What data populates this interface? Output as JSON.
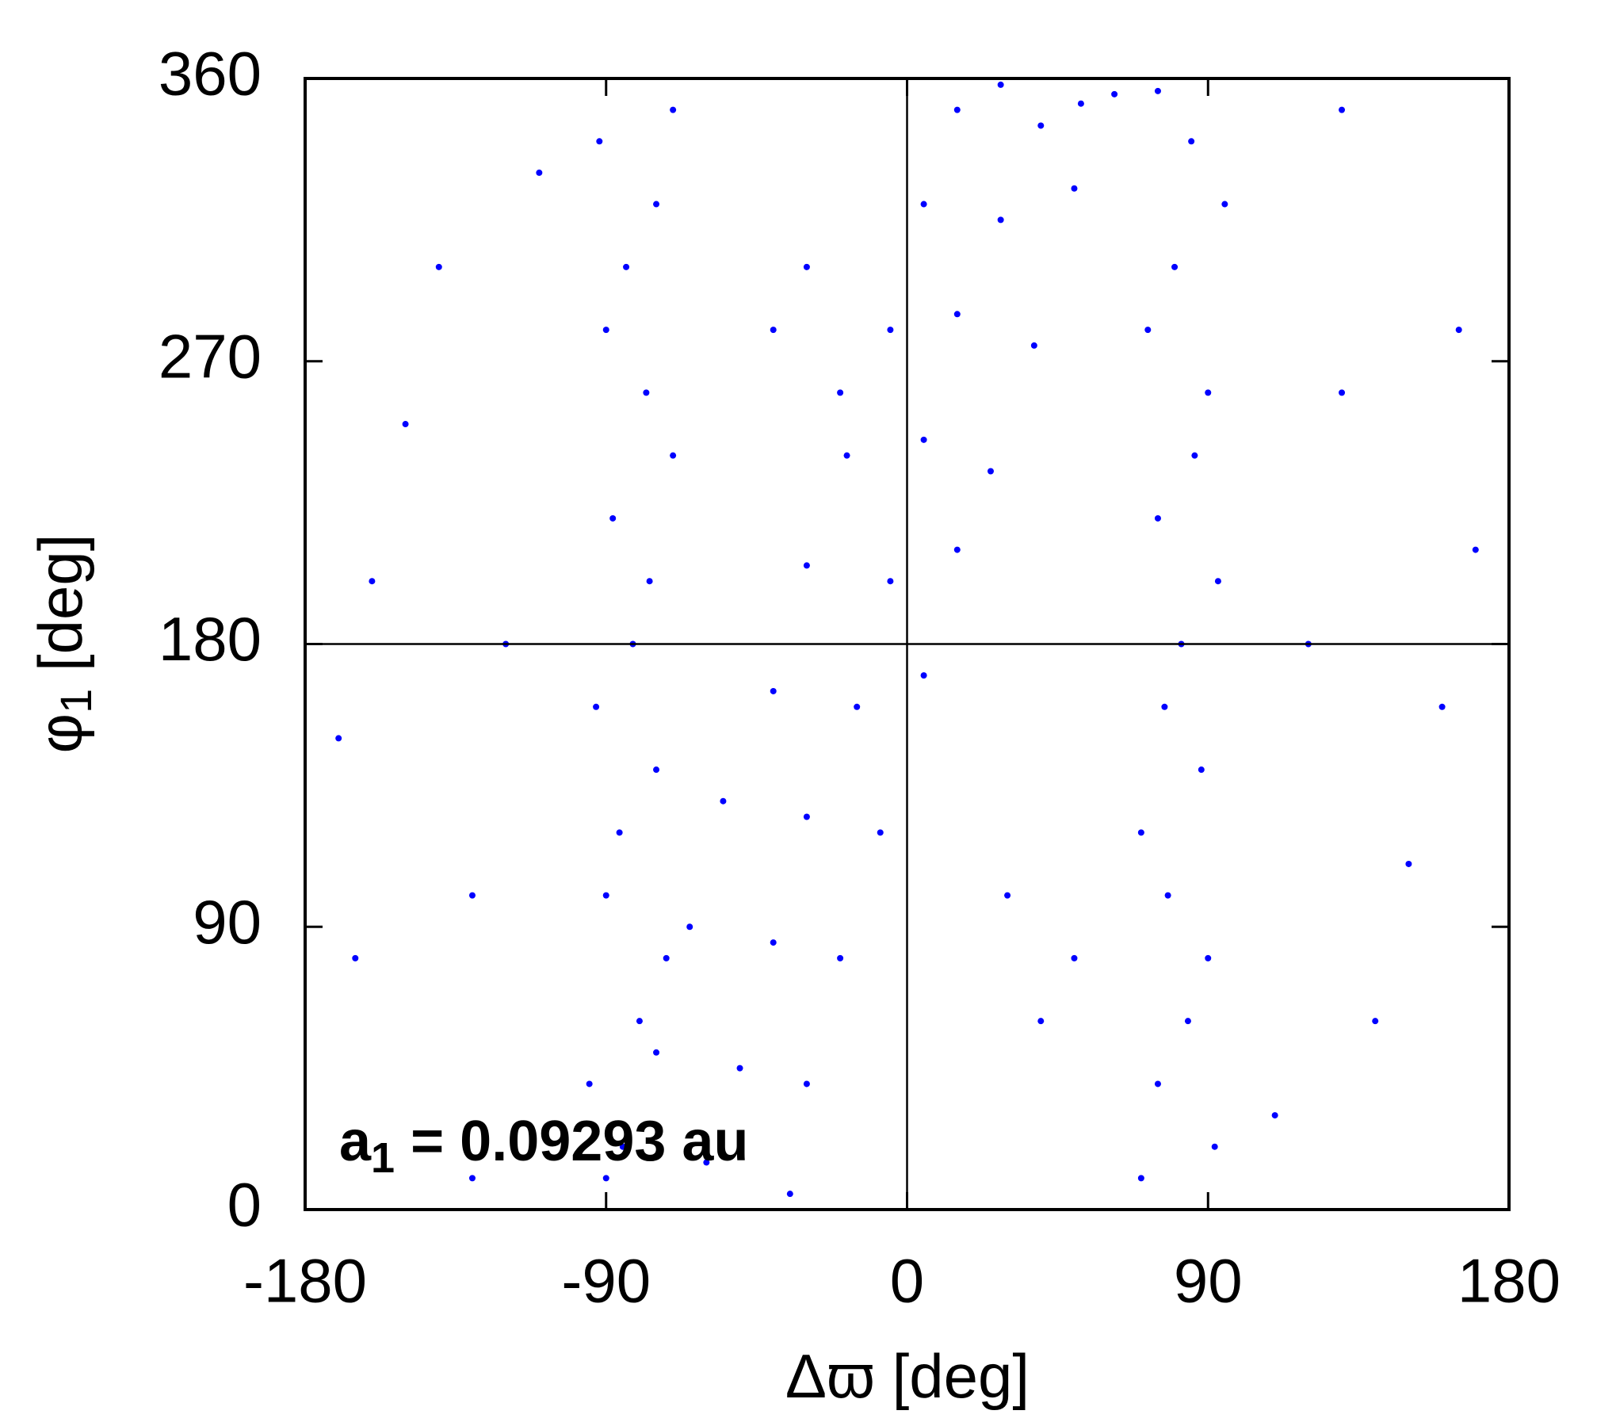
{
  "chart_data": {
    "type": "scatter",
    "xlabel": {
      "main": "Δϖ",
      "rest": " [deg]"
    },
    "ylabel": {
      "main": "φ",
      "sub": "1",
      "rest": " [deg]"
    },
    "annotation": {
      "main": "a",
      "sub": "1",
      "rest": " = 0.09293 au"
    },
    "xlim": [
      -180,
      180
    ],
    "ylim": [
      0,
      360
    ],
    "xticks": [
      -180,
      -90,
      0,
      90,
      180
    ],
    "yticks": [
      0,
      90,
      180,
      270,
      360
    ],
    "xref": 0,
    "yref": 180,
    "series": [
      {
        "color": "#0000ff",
        "x": [
          -85,
          -80,
          -90,
          -75,
          -82,
          -88,
          -78,
          -84,
          -92,
          -70,
          -95,
          -72,
          -86,
          -93,
          -77,
          -70,
          -90,
          -75,
          85,
          80,
          90,
          75,
          82,
          88,
          78,
          84,
          92,
          70,
          95,
          72,
          86,
          93,
          77,
          70,
          90,
          75,
          -90,
          -60,
          -35,
          -75,
          -50,
          -30,
          -65,
          -40,
          -20,
          -55,
          -30,
          -8,
          -40,
          -15,
          5,
          -30,
          -5,
          15,
          -18,
          5,
          25,
          -5,
          15,
          38,
          5,
          28,
          50,
          15,
          40,
          62,
          28,
          52,
          75,
          -30,
          -20,
          -40,
          40,
          30,
          50,
          -160,
          -150,
          -170,
          -130,
          -140,
          -120,
          -165,
          -110,
          160,
          150,
          170,
          130,
          140,
          120,
          165,
          110,
          -130,
          130
        ],
        "y": [
          20,
          60,
          100,
          140,
          180,
          220,
          260,
          300,
          340,
          350,
          40,
          80,
          120,
          160,
          200,
          240,
          280,
          320,
          340,
          300,
          260,
          220,
          180,
          140,
          100,
          60,
          20,
          10,
          320,
          280,
          240,
          200,
          160,
          120,
          80,
          40,
          10,
          15,
          5,
          50,
          45,
          40,
          90,
          85,
          80,
          130,
          125,
          120,
          165,
          160,
          170,
          205,
          200,
          210,
          240,
          245,
          235,
          280,
          285,
          275,
          320,
          315,
          325,
          350,
          345,
          355,
          358,
          352,
          356,
          300,
          260,
          280,
          60,
          100,
          80,
          200,
          250,
          150,
          100,
          300,
          180,
          80,
          330,
          160,
          110,
          210,
          260,
          60,
          180,
          280,
          30,
          10,
          350
        ]
      }
    ]
  }
}
